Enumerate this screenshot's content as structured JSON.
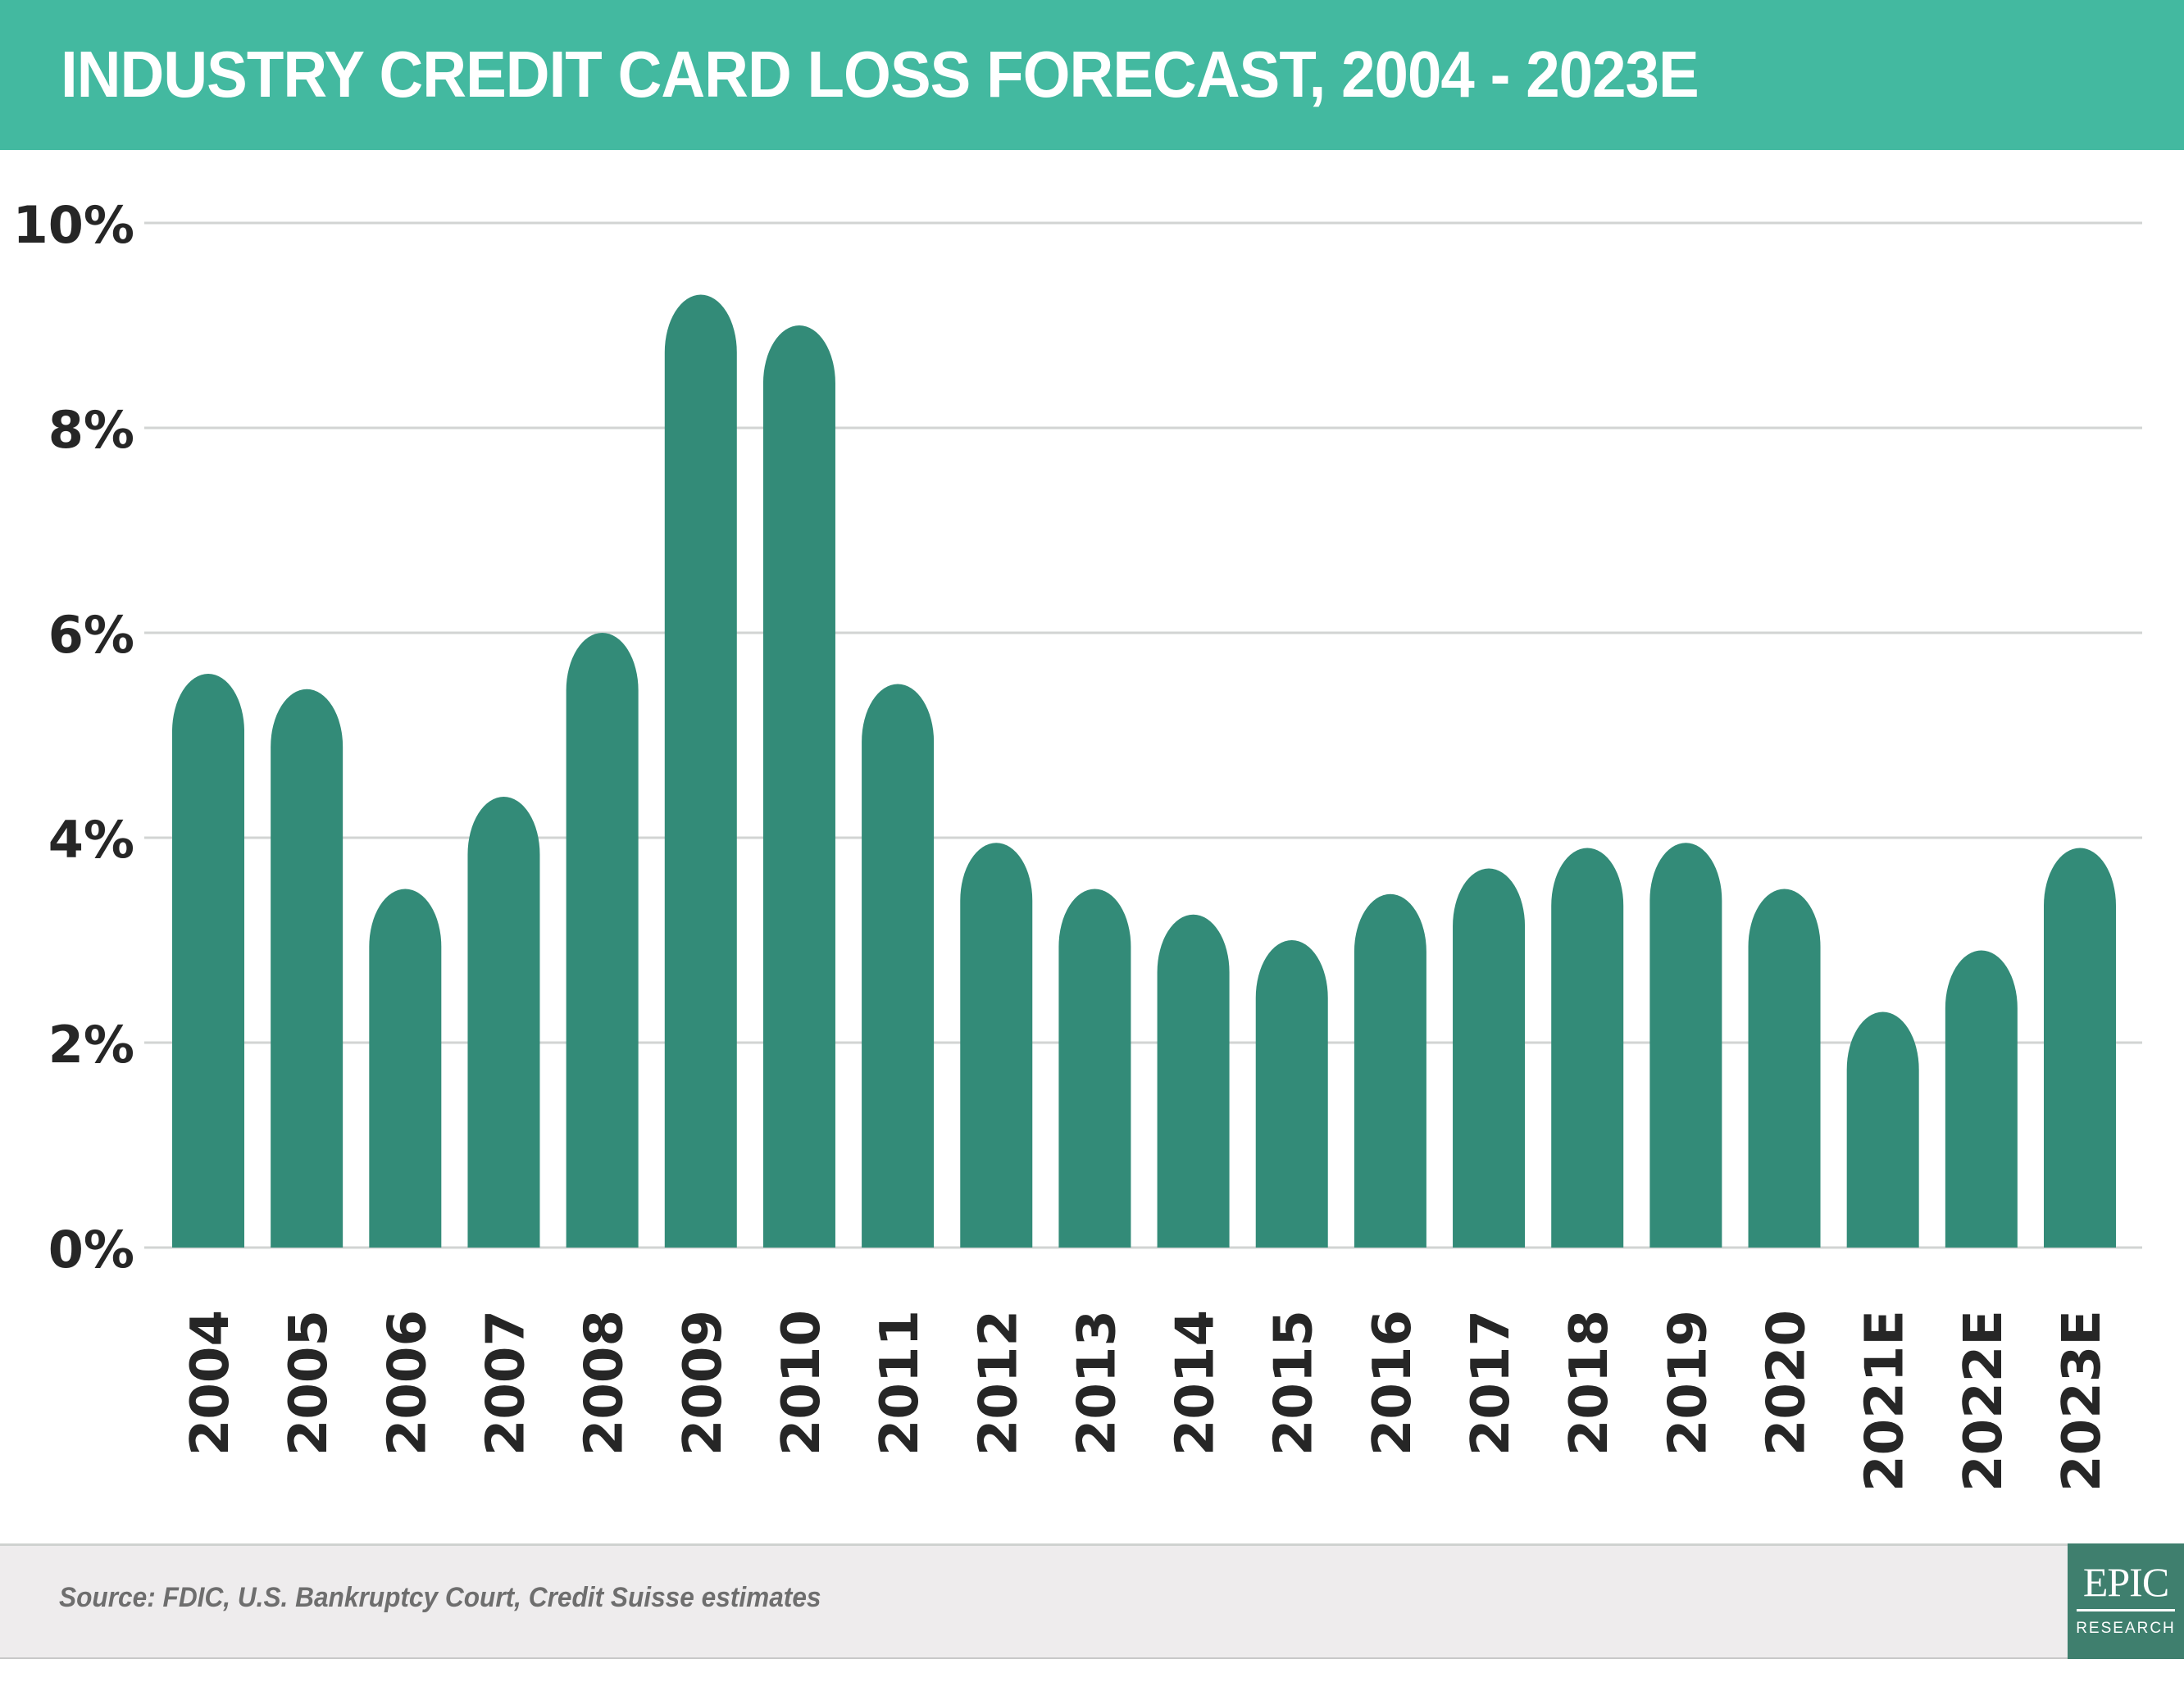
{
  "header": {
    "title": "INDUSTRY CREDIT CARD LOSS FORECAST, 2004 - 2023E"
  },
  "footer": {
    "source": "Source: FDIC, U.S. Bankruptcy Court, Credit Suisse estimates"
  },
  "logo": {
    "name": "EPIC",
    "subtitle": "RESEARCH"
  },
  "colors": {
    "header_bg": "#43b9a0",
    "bar": "#338b78",
    "gridline": "#d2d4d3",
    "axis_text": "#262626",
    "footer_bg": "#eeeced",
    "footer_text": "#6e6e6e",
    "logo_bg": "#3f7f6e"
  },
  "chart_data": {
    "type": "bar",
    "title": "INDUSTRY CREDIT CARD LOSS FORECAST, 2004 - 2023E",
    "xlabel": "",
    "ylabel": "",
    "categories": [
      "2004",
      "2005",
      "2006",
      "2007",
      "2008",
      "2009",
      "2010",
      "2011",
      "2012",
      "2013",
      "2014",
      "2015",
      "2016",
      "2017",
      "2018",
      "2019",
      "2020",
      "2021E",
      "2022E",
      "2023E"
    ],
    "values": [
      5.6,
      5.45,
      3.5,
      4.4,
      6.0,
      9.3,
      9.0,
      5.5,
      3.95,
      3.5,
      3.25,
      3.0,
      3.45,
      3.7,
      3.9,
      3.95,
      3.5,
      2.3,
      2.9,
      3.9
    ],
    "value_unit": "%",
    "ylim": [
      0,
      10
    ],
    "yticks": [
      0,
      2,
      4,
      6,
      8,
      10
    ],
    "ytick_labels": [
      "0%",
      "2%",
      "4%",
      "6%",
      "8%",
      "10%"
    ],
    "grid": true,
    "legend": "none",
    "source": "Source: FDIC, U.S. Bankruptcy Court, Credit Suisse estimates"
  }
}
